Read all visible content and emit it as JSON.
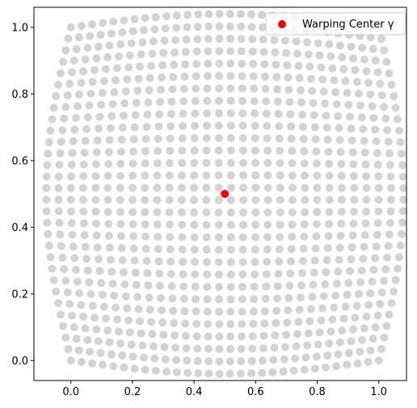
{
  "chart_data": {
    "type": "scatter",
    "xlim": [
      -0.12,
      1.09
    ],
    "ylim": [
      -0.06,
      1.06
    ],
    "xticks": [
      "0.0",
      "0.2",
      "0.4",
      "0.6",
      "0.8",
      "1.0"
    ],
    "yticks": [
      "0.0",
      "0.2",
      "0.4",
      "0.6",
      "0.8",
      "1.0"
    ],
    "grid": false,
    "legend": {
      "placement": "top-right",
      "entries": [
        "Warping Center γ"
      ]
    },
    "series": [
      {
        "kind": "grid",
        "color": "#d3d3d3",
        "grid_size": 30,
        "domain": [
          0,
          1
        ],
        "warping_center": [
          0.5,
          0.5
        ],
        "max_horizontal_shift": 0.08,
        "max_vertical_shift": 0.04
      },
      {
        "name": "Warping Center γ",
        "color": "#ff0000",
        "points": [
          [
            0.5,
            0.5
          ]
        ]
      }
    ]
  }
}
